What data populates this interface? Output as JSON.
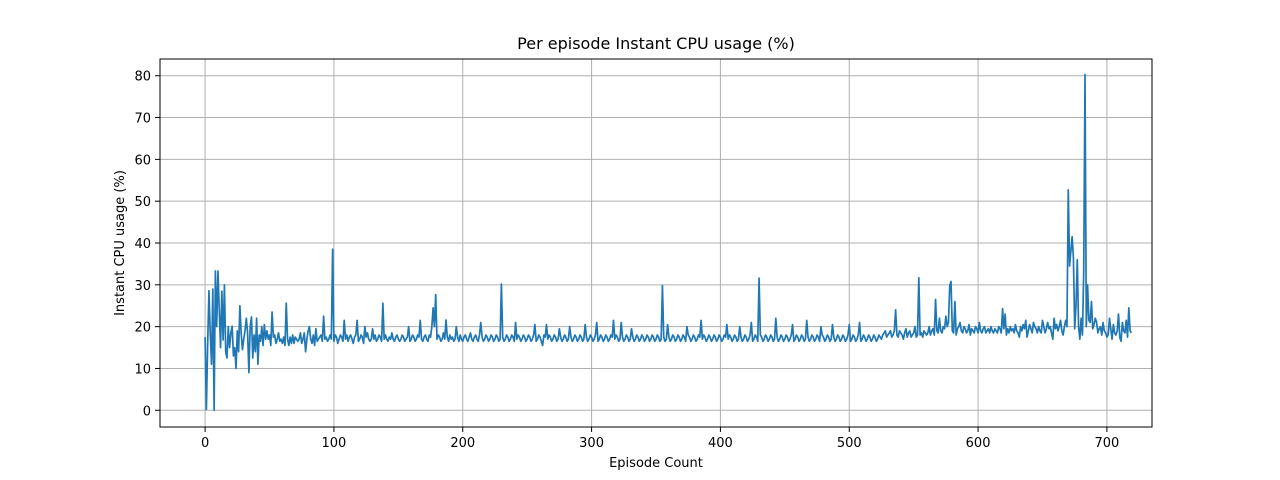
{
  "chart_data": {
    "type": "line",
    "title": "Per episode Instant CPU usage (%)",
    "xlabel": "Episode Count",
    "ylabel": "Instant CPU usage (%)",
    "xlim": [
      -35,
      735
    ],
    "ylim": [
      -4,
      84
    ],
    "xticks": [
      0,
      100,
      200,
      300,
      400,
      500,
      600,
      700
    ],
    "yticks": [
      0,
      10,
      20,
      30,
      40,
      50,
      60,
      70,
      80
    ],
    "grid": true,
    "series": [
      {
        "color": "#1f77b4",
        "sample_every": 1,
        "values": [
          17.5,
          0.2,
          16.0,
          28.6,
          18.2,
          11.0,
          29.0,
          0.0,
          33.3,
          20.0,
          33.3,
          24.0,
          15.0,
          28.5,
          16.8,
          30.0,
          14.0,
          12.5,
          20.0,
          15.0,
          18.5,
          20.1,
          13.0,
          15.0,
          10.0,
          19.0,
          14.0,
          25.0,
          18.5,
          14.5,
          17.0,
          19.0,
          22.0,
          18.5,
          9.0,
          20.0,
          22.3,
          12.5,
          18.0,
          14.0,
          22.0,
          11.0,
          18.0,
          16.5,
          20.0,
          15.5,
          20.5,
          17.0,
          19.0,
          17.0,
          18.0,
          15.5,
          23.5,
          17.5,
          18.0,
          16.0,
          17.0,
          18.5,
          16.5,
          17.0,
          16.0,
          17.5,
          15.5,
          25.6,
          17.0,
          15.5,
          17.5,
          16.0,
          18.0,
          16.0,
          17.5,
          17.0,
          16.5,
          17.0,
          18.5,
          16.0,
          17.0,
          18.5,
          14.0,
          17.0,
          19.0,
          20.0,
          17.0,
          16.0,
          18.0,
          15.5,
          19.5,
          16.5,
          17.0,
          17.5,
          18.0,
          16.5,
          22.5,
          17.0,
          17.5,
          16.5,
          17.0,
          18.0,
          17.0,
          38.5,
          16.5,
          18.0,
          17.5,
          16.0,
          17.0,
          18.0,
          17.5,
          16.5,
          21.5,
          17.0,
          18.0,
          16.5,
          17.5,
          18.0,
          17.0,
          16.0,
          17.5,
          18.0,
          21.5,
          16.5,
          17.0,
          18.0,
          17.5,
          16.0,
          20.0,
          17.5,
          18.5,
          17.0,
          16.5,
          17.0,
          19.5,
          17.0,
          18.0,
          16.5,
          17.0,
          18.0,
          17.5,
          16.5,
          25.6,
          17.0,
          18.0,
          17.0,
          16.5,
          17.5,
          17.0,
          18.5,
          17.0,
          16.5,
          17.5,
          18.0,
          17.0,
          16.5,
          17.0,
          18.0,
          17.5,
          16.5,
          17.0,
          17.5,
          20.0,
          16.5,
          17.0,
          18.0,
          17.5,
          16.5,
          17.0,
          18.0,
          17.5,
          21.5,
          17.0,
          16.5,
          17.5,
          18.0,
          17.0,
          16.5,
          18.0,
          17.5,
          20.0,
          24.5,
          20.0,
          27.7,
          17.0,
          18.0,
          17.5,
          16.5,
          17.0,
          18.5,
          17.0,
          21.6,
          17.5,
          16.5,
          18.0,
          17.0,
          17.5,
          16.5,
          17.0,
          20.0,
          17.5,
          16.5,
          18.0,
          17.0,
          16.5,
          17.5,
          18.0,
          17.0,
          16.5,
          17.5,
          18.5,
          17.0,
          16.5,
          17.5,
          18.0,
          17.0,
          16.5,
          18.0,
          21.0,
          17.5,
          16.5,
          17.0,
          18.0,
          17.5,
          16.5,
          17.0,
          18.0,
          17.5,
          16.5,
          17.0,
          18.0,
          17.5,
          16.5,
          17.0,
          30.2,
          17.5,
          16.5,
          17.0,
          18.0,
          17.5,
          16.5,
          17.0,
          18.0,
          17.5,
          16.5,
          21.0,
          17.0,
          18.0,
          17.5,
          16.5,
          17.0,
          18.0,
          17.5,
          16.5,
          17.0,
          18.0,
          17.5,
          16.5,
          17.0,
          18.0,
          20.5,
          16.5,
          17.0,
          18.0,
          17.5,
          16.5,
          15.5,
          18.0,
          17.5,
          20.5,
          17.0,
          18.0,
          17.5,
          16.5,
          17.0,
          18.0,
          17.5,
          16.5,
          17.0,
          19.5,
          17.5,
          16.5,
          17.0,
          18.0,
          17.5,
          16.5,
          17.0,
          20.0,
          17.5,
          16.5,
          17.0,
          18.0,
          17.5,
          16.5,
          17.0,
          18.0,
          17.5,
          16.5,
          17.0,
          20.5,
          17.5,
          16.5,
          17.0,
          18.0,
          17.5,
          16.5,
          17.0,
          18.0,
          21.0,
          16.5,
          17.0,
          18.0,
          17.5,
          16.5,
          17.0,
          18.0,
          17.5,
          16.5,
          17.0,
          18.0,
          17.5,
          21.5,
          17.0,
          18.0,
          17.5,
          16.5,
          17.0,
          21.0,
          17.5,
          16.5,
          17.0,
          18.0,
          17.5,
          16.5,
          17.0,
          19.5,
          17.5,
          16.5,
          17.0,
          18.0,
          17.5,
          16.5,
          17.0,
          18.0,
          17.5,
          16.5,
          17.0,
          18.0,
          17.5,
          16.5,
          17.0,
          18.0,
          17.5,
          16.5,
          17.0,
          18.0,
          17.5,
          16.5,
          17.0,
          29.8,
          17.5,
          16.5,
          17.0,
          20.5,
          17.5,
          16.5,
          17.0,
          18.0,
          17.5,
          16.5,
          17.0,
          18.0,
          17.5,
          16.5,
          17.0,
          18.0,
          17.5,
          16.5,
          20.0,
          18.0,
          17.5,
          16.5,
          17.0,
          18.0,
          17.5,
          16.5,
          17.0,
          18.0,
          17.5,
          21.5,
          17.0,
          18.0,
          17.5,
          16.5,
          17.0,
          18.0,
          17.5,
          16.5,
          17.0,
          18.0,
          17.5,
          16.5,
          17.0,
          18.0,
          17.5,
          16.5,
          17.0,
          18.0,
          17.5,
          20.5,
          17.0,
          18.0,
          17.5,
          16.5,
          17.0,
          18.0,
          17.5,
          16.5,
          17.0,
          20.0,
          17.5,
          16.5,
          17.0,
          18.0,
          17.5,
          16.5,
          17.0,
          18.0,
          21.0,
          16.5,
          17.0,
          18.0,
          17.5,
          16.5,
          31.6,
          18.0,
          17.5,
          16.5,
          17.0,
          18.0,
          17.5,
          16.5,
          17.0,
          18.0,
          17.5,
          16.5,
          17.0,
          22.0,
          17.5,
          16.5,
          17.0,
          18.0,
          17.5,
          16.5,
          17.0,
          18.0,
          17.5,
          16.5,
          17.0,
          18.0,
          20.5,
          16.5,
          17.0,
          18.0,
          17.5,
          16.5,
          17.0,
          18.0,
          17.5,
          16.5,
          17.0,
          21.5,
          17.5,
          16.5,
          17.0,
          18.0,
          17.5,
          16.5,
          17.0,
          18.0,
          17.5,
          16.5,
          20.0,
          18.0,
          17.5,
          16.5,
          17.0,
          18.0,
          17.5,
          16.5,
          17.0,
          20.5,
          17.5,
          16.5,
          17.0,
          18.0,
          17.5,
          16.5,
          17.0,
          18.0,
          17.5,
          16.5,
          17.0,
          18.0,
          20.5,
          16.5,
          17.0,
          18.0,
          17.5,
          16.5,
          17.0,
          18.0,
          21.0,
          16.5,
          17.0,
          18.0,
          17.5,
          16.5,
          17.0,
          18.0,
          17.5,
          16.5,
          17.0,
          18.0,
          17.5,
          16.5,
          17.0,
          18.0,
          17.5,
          17.0,
          18.0,
          18.5,
          19.0,
          17.5,
          18.0,
          18.5,
          19.0,
          17.5,
          18.0,
          19.0,
          24.0,
          18.0,
          17.5,
          19.0,
          18.5,
          18.0,
          17.0,
          18.5,
          19.5,
          17.5,
          18.5,
          19.0,
          17.5,
          18.0,
          18.5,
          20.0,
          17.5,
          18.0,
          31.7,
          18.0,
          18.5,
          17.5,
          19.0,
          18.5,
          18.0,
          18.5,
          20.0,
          18.0,
          19.0,
          19.5,
          18.0,
          26.5,
          19.0,
          18.5,
          22.0,
          19.0,
          18.5,
          20.0,
          19.5,
          22.5,
          20.0,
          21.0,
          29.8,
          30.8,
          19.0,
          18.5,
          26.0,
          18.0,
          19.5,
          20.0,
          21.0,
          19.0,
          18.5,
          20.0,
          19.5,
          18.5,
          19.0,
          20.5,
          18.0,
          19.5,
          19.0,
          18.5,
          20.0,
          19.5,
          18.5,
          21.0,
          19.0,
          18.5,
          19.5,
          20.0,
          18.5,
          19.0,
          19.5,
          18.5,
          20.0,
          19.0,
          18.5,
          19.5,
          19.0,
          18.5,
          20.0,
          19.5,
          18.5,
          24.3,
          19.5,
          23.0,
          18.0,
          19.5,
          18.5,
          20.0,
          19.0,
          19.5,
          18.5,
          20.5,
          19.0,
          18.5,
          17.5,
          20.0,
          19.0,
          20.5,
          19.5,
          21.5,
          17.5,
          19.0,
          20.5,
          19.5,
          18.5,
          21.0,
          20.0,
          19.5,
          18.5,
          20.0,
          19.0,
          18.5,
          21.5,
          20.0,
          18.5,
          19.5,
          21.0,
          19.5,
          20.0,
          18.5,
          17.0,
          22.0,
          19.5,
          20.5,
          19.0,
          20.0,
          21.5,
          19.0,
          18.0,
          20.0,
          21.5,
          20.0,
          52.7,
          34.5,
          38.0,
          41.5,
          36.5,
          19.5,
          25.0,
          36.0,
          20.0,
          17.0,
          22.0,
          18.0,
          33.0,
          80.3,
          20.0,
          30.0,
          21.5,
          21.0,
          26.0,
          19.5,
          20.5,
          22.0,
          21.0,
          18.5,
          19.5,
          20.0,
          18.0,
          21.0,
          19.0,
          18.5,
          17.5,
          18.0,
          22.0,
          19.5,
          17.0,
          20.5,
          18.5,
          18.0,
          19.0,
          23.0,
          17.5,
          16.5,
          21.0,
          19.0,
          18.5,
          21.5,
          17.5,
          24.5,
          19.0,
          18.5
        ]
      }
    ]
  }
}
